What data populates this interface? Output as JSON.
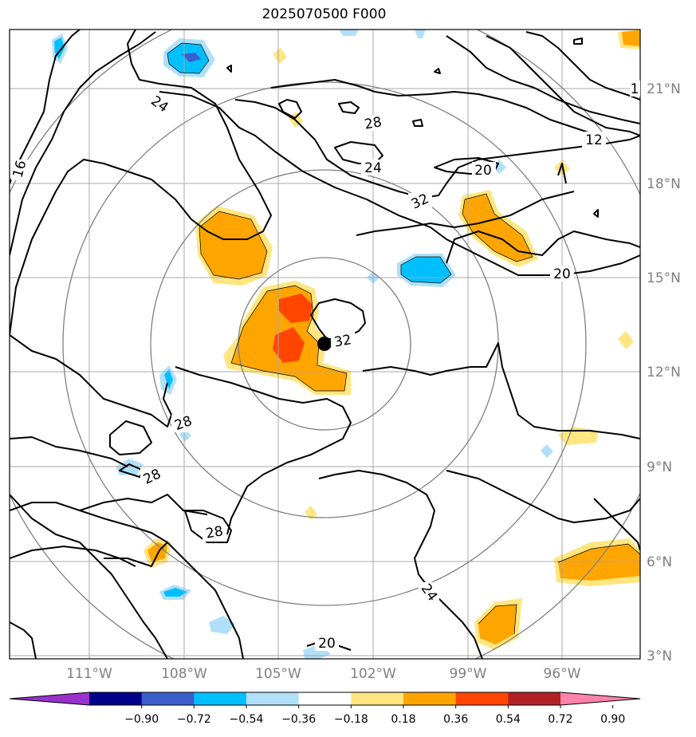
{
  "title": "2025070500 F000",
  "lat_labels": [
    "21°N",
    "18°N",
    "15°N",
    "12°N",
    "9°N",
    "6°N",
    "3°N"
  ],
  "lon_labels": [
    "111°W",
    "108°W",
    "105°W",
    "102°W",
    "99°W",
    "96°W"
  ],
  "colorbar": {
    "ticks": [
      "−0.90",
      "−0.72",
      "−0.54",
      "−0.36",
      "−0.18",
      "0.18",
      "0.36",
      "0.54",
      "0.72",
      "0.90"
    ],
    "colors": [
      "#9932cc",
      "#00008b",
      "#3a5fcd",
      "#00bfff",
      "#b0e0f8",
      "#ffffff",
      "#ffe680",
      "#ffa500",
      "#ff4500",
      "#b22222",
      "#ff82ab"
    ]
  },
  "contour_labels": [
    "24",
    "28",
    "16",
    "12",
    "24",
    "20",
    "32",
    "20",
    "32",
    "28",
    "28",
    "28",
    "24",
    "20",
    "1"
  ],
  "storm_center": {
    "lat": 12.9,
    "lon": -103.5
  }
}
